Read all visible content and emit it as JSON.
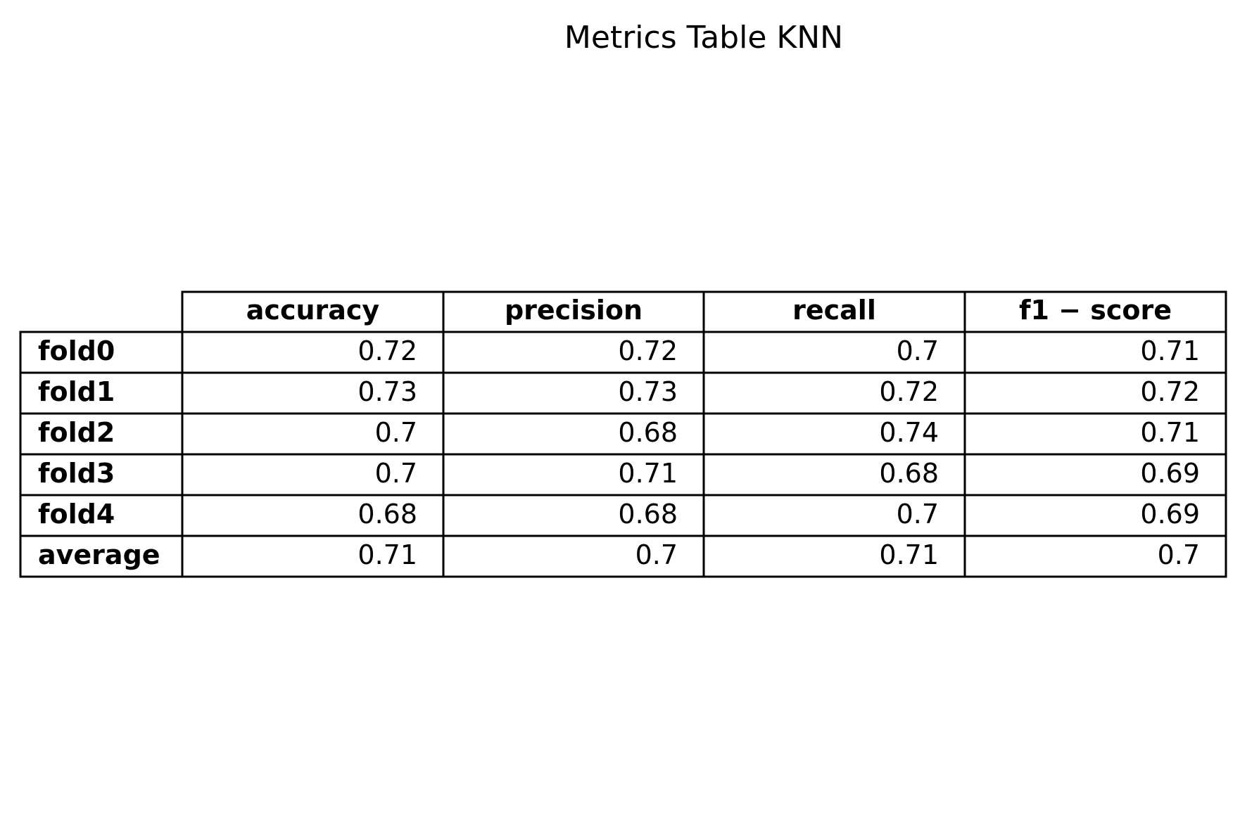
{
  "chart_data": {
    "type": "table",
    "title": "Metrics Table KNN",
    "columns": [
      "accuracy",
      "precision",
      "recall",
      "f1 − score"
    ],
    "rows": [
      {
        "label": "fold0",
        "values": [
          "0.72",
          "0.72",
          "0.7",
          "0.71"
        ]
      },
      {
        "label": "fold1",
        "values": [
          "0.73",
          "0.73",
          "0.72",
          "0.72"
        ]
      },
      {
        "label": "fold2",
        "values": [
          "0.7",
          "0.68",
          "0.74",
          "0.71"
        ]
      },
      {
        "label": "fold3",
        "values": [
          "0.7",
          "0.71",
          "0.68",
          "0.69"
        ]
      },
      {
        "label": "fold4",
        "values": [
          "0.68",
          "0.68",
          "0.7",
          "0.69"
        ]
      },
      {
        "label": "average",
        "values": [
          "0.71",
          "0.7",
          "0.71",
          "0.7"
        ]
      }
    ]
  }
}
